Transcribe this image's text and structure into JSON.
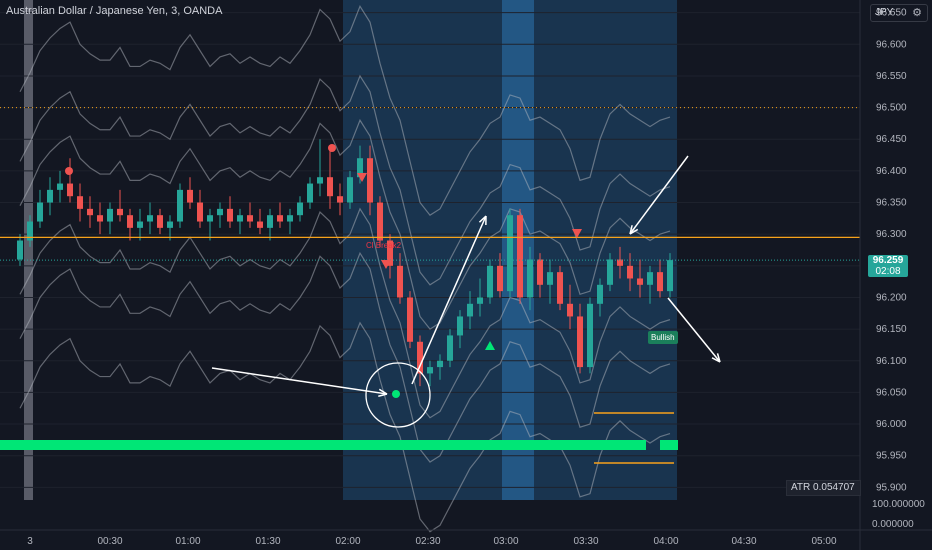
{
  "title": "Australian Dollar / Japanese Yen, 3, OANDA",
  "currency": "JPY",
  "price_tag": {
    "price": "96.259",
    "countdown": "02:08"
  },
  "atr": "ATR  0.054707",
  "lower_axis": [
    "100.000000",
    "0.000000"
  ],
  "cl_label": "Cl Break2",
  "bull_label": "Bullish",
  "colors": {
    "up": "#26a69a",
    "down": "#ef5350",
    "bg": "#131722",
    "band": "#1f4c74",
    "orange": "#f7a21b",
    "green": "#00e676"
  },
  "chart_data": {
    "type": "candlestick",
    "y_ticks": [
      95.9,
      95.95,
      96.0,
      96.05,
      96.1,
      96.15,
      96.2,
      96.25,
      96.3,
      96.35,
      96.4,
      96.45,
      96.5,
      96.55,
      96.6,
      96.65
    ],
    "y_tick_labels": [
      "95.900",
      "95.950",
      "96.000",
      "96.050",
      "96.100",
      "96.150",
      "96.200",
      "96.250",
      "96.300",
      "96.350",
      "96.400",
      "96.450",
      "96.500",
      "96.550",
      "96.600",
      "96.650"
    ],
    "x_ticks": [
      "3",
      "00:30",
      "01:00",
      "01:30",
      "02:00",
      "02:30",
      "03:00",
      "03:30",
      "04:00",
      "04:30",
      "05:00"
    ],
    "ylim": [
      95.88,
      96.67
    ],
    "last_price": 96.259,
    "candles": [
      [
        96.26,
        96.3,
        96.25,
        96.29
      ],
      [
        96.29,
        96.33,
        96.28,
        96.32
      ],
      [
        96.32,
        96.37,
        96.31,
        96.35
      ],
      [
        96.35,
        96.39,
        96.33,
        96.37
      ],
      [
        96.37,
        96.4,
        96.35,
        96.38
      ],
      [
        96.38,
        96.42,
        96.35,
        96.36
      ],
      [
        96.36,
        96.38,
        96.32,
        96.34
      ],
      [
        96.34,
        96.36,
        96.31,
        96.33
      ],
      [
        96.33,
        96.35,
        96.3,
        96.32
      ],
      [
        96.32,
        96.35,
        96.3,
        96.34
      ],
      [
        96.34,
        96.37,
        96.32,
        96.33
      ],
      [
        96.33,
        96.34,
        96.29,
        96.31
      ],
      [
        96.31,
        96.34,
        96.29,
        96.32
      ],
      [
        96.32,
        96.35,
        96.3,
        96.33
      ],
      [
        96.33,
        96.34,
        96.3,
        96.31
      ],
      [
        96.31,
        96.33,
        96.29,
        96.32
      ],
      [
        96.32,
        96.38,
        96.31,
        96.37
      ],
      [
        96.37,
        96.39,
        96.34,
        96.35
      ],
      [
        96.35,
        96.37,
        96.31,
        96.32
      ],
      [
        96.32,
        96.34,
        96.29,
        96.33
      ],
      [
        96.33,
        96.35,
        96.31,
        96.34
      ],
      [
        96.34,
        96.36,
        96.31,
        96.32
      ],
      [
        96.32,
        96.34,
        96.3,
        96.33
      ],
      [
        96.33,
        96.35,
        96.31,
        96.32
      ],
      [
        96.32,
        96.34,
        96.3,
        96.31
      ],
      [
        96.31,
        96.34,
        96.29,
        96.33
      ],
      [
        96.33,
        96.35,
        96.31,
        96.32
      ],
      [
        96.32,
        96.34,
        96.3,
        96.33
      ],
      [
        96.33,
        96.36,
        96.32,
        96.35
      ],
      [
        96.35,
        96.39,
        96.34,
        96.38
      ],
      [
        96.38,
        96.45,
        96.36,
        96.39
      ],
      [
        96.39,
        96.44,
        96.34,
        96.36
      ],
      [
        96.36,
        96.38,
        96.33,
        96.35
      ],
      [
        96.35,
        96.4,
        96.34,
        96.39
      ],
      [
        96.39,
        96.44,
        96.38,
        96.42
      ],
      [
        96.42,
        96.44,
        96.33,
        96.35
      ],
      [
        96.35,
        96.36,
        96.28,
        96.29
      ],
      [
        96.29,
        96.3,
        96.23,
        96.25
      ],
      [
        96.25,
        96.27,
        96.19,
        96.2
      ],
      [
        96.2,
        96.21,
        96.12,
        96.13
      ],
      [
        96.13,
        96.14,
        96.06,
        96.08
      ],
      [
        96.08,
        96.1,
        96.06,
        96.09
      ],
      [
        96.09,
        96.11,
        96.07,
        96.1
      ],
      [
        96.1,
        96.15,
        96.09,
        96.14
      ],
      [
        96.14,
        96.18,
        96.12,
        96.17
      ],
      [
        96.17,
        96.21,
        96.15,
        96.19
      ],
      [
        96.19,
        96.23,
        96.17,
        96.2
      ],
      [
        96.2,
        96.26,
        96.19,
        96.25
      ],
      [
        96.25,
        96.27,
        96.2,
        96.21
      ],
      [
        96.21,
        96.34,
        96.2,
        96.33
      ],
      [
        96.33,
        96.34,
        96.19,
        96.2
      ],
      [
        96.2,
        96.28,
        96.18,
        96.26
      ],
      [
        96.26,
        96.27,
        96.2,
        96.22
      ],
      [
        96.22,
        96.26,
        96.19,
        96.24
      ],
      [
        96.24,
        96.25,
        96.18,
        96.19
      ],
      [
        96.19,
        96.22,
        96.15,
        96.17
      ],
      [
        96.17,
        96.19,
        96.08,
        96.09
      ],
      [
        96.09,
        96.2,
        96.08,
        96.19
      ],
      [
        96.19,
        96.23,
        96.17,
        96.22
      ],
      [
        96.22,
        96.27,
        96.21,
        96.26
      ],
      [
        96.26,
        96.28,
        96.23,
        96.25
      ],
      [
        96.25,
        96.27,
        96.21,
        96.23
      ],
      [
        96.23,
        96.26,
        96.2,
        96.22
      ],
      [
        96.22,
        96.25,
        96.19,
        96.24
      ],
      [
        96.24,
        96.26,
        96.2,
        96.21
      ],
      [
        96.21,
        96.27,
        96.2,
        96.259
      ]
    ]
  }
}
